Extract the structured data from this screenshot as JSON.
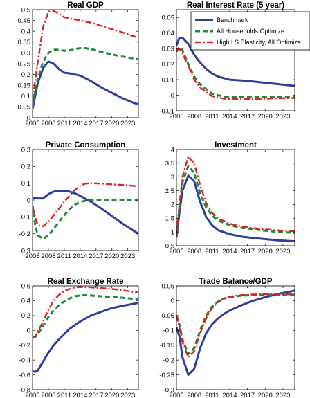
{
  "chart_data": [
    {
      "type": "line",
      "title": "Real GDP",
      "xlim": [
        2005,
        2025
      ],
      "ylim": [
        0,
        0.5
      ],
      "xticks": [
        "2005",
        "2008",
        "2011",
        "2014",
        "2017",
        "2020",
        "2023"
      ],
      "yticks": [
        "0",
        "0.05",
        "0.1",
        "0.15",
        "0.2",
        "0.25",
        "0.3",
        "0.35",
        "0.4",
        "0.45",
        "0.5"
      ],
      "series": [
        {
          "key": "benchmark",
          "x": [
            2005,
            2006,
            2007,
            2008,
            2009,
            2010,
            2011,
            2012,
            2014,
            2016,
            2018,
            2020,
            2022,
            2024,
            2025
          ],
          "y": [
            0.04,
            0.16,
            0.23,
            0.26,
            0.25,
            0.225,
            0.208,
            0.205,
            0.195,
            0.17,
            0.14,
            0.115,
            0.09,
            0.07,
            0.062
          ]
        },
        {
          "key": "all_optimize",
          "x": [
            2005,
            2006,
            2007,
            2008,
            2009,
            2010,
            2011,
            2012,
            2013,
            2014,
            2015,
            2016,
            2018,
            2020,
            2022,
            2025
          ],
          "y": [
            0.06,
            0.18,
            0.26,
            0.3,
            0.315,
            0.315,
            0.31,
            0.312,
            0.318,
            0.322,
            0.322,
            0.318,
            0.305,
            0.293,
            0.283,
            0.27
          ]
        },
        {
          "key": "high_ls",
          "x": [
            2005,
            2006,
            2007,
            2008,
            2009,
            2010,
            2011,
            2012,
            2014,
            2016,
            2018,
            2020,
            2022,
            2025
          ],
          "y": [
            0.08,
            0.26,
            0.42,
            0.49,
            0.495,
            0.48,
            0.465,
            0.46,
            0.45,
            0.44,
            0.425,
            0.41,
            0.395,
            0.37
          ]
        }
      ]
    },
    {
      "type": "line",
      "title": "Real Interest Rate (5 year)",
      "xlim": [
        2005,
        2025
      ],
      "ylim": [
        -0.01,
        0.055
      ],
      "xticks": [
        "2005",
        "2008",
        "2011",
        "2014",
        "2017",
        "2020",
        "2023"
      ],
      "yticks": [
        "-0.01",
        "0",
        "0.01",
        "0.02",
        "0.03",
        "0.04",
        "0.05"
      ],
      "legend": [
        "Benchmark",
        "All Households Optimize",
        "High LS Elasticity, All Optimize"
      ],
      "series": [
        {
          "key": "benchmark",
          "x": [
            2005,
            2005.5,
            2006,
            2007,
            2008,
            2009,
            2010,
            2011,
            2012,
            2014,
            2016,
            2018,
            2020,
            2022,
            2025
          ],
          "y": [
            0.032,
            0.037,
            0.037,
            0.033,
            0.026,
            0.021,
            0.017,
            0.014,
            0.012,
            0.01,
            0.0095,
            0.0088,
            0.008,
            0.0072,
            0.006
          ]
        },
        {
          "key": "all_optimize",
          "x": [
            2005,
            2005.5,
            2006,
            2007,
            2008,
            2009,
            2010,
            2011,
            2012,
            2013,
            2014,
            2016,
            2018,
            2020,
            2022,
            2025
          ],
          "y": [
            0.028,
            0.031,
            0.029,
            0.02,
            0.012,
            0.007,
            0.004,
            0.001,
            0,
            -0.0008,
            -0.001,
            -0.0012,
            -0.0012,
            -0.0012,
            -0.0012,
            -0.0012
          ]
        },
        {
          "key": "high_ls",
          "x": [
            2005,
            2005.5,
            2006,
            2007,
            2008,
            2009,
            2010,
            2011,
            2012,
            2013,
            2014,
            2016,
            2018,
            2020,
            2022,
            2025
          ],
          "y": [
            0.029,
            0.03,
            0.027,
            0.019,
            0.01,
            0.005,
            0.002,
            -0.0005,
            -0.0015,
            -0.0022,
            -0.0024,
            -0.0025,
            -0.0024,
            -0.0022,
            -0.002,
            -0.0018
          ]
        }
      ]
    },
    {
      "type": "line",
      "title": "Private Consumption",
      "xlim": [
        2005,
        2025
      ],
      "ylim": [
        -0.3,
        0.3
      ],
      "xticks": [
        "2005",
        "2008",
        "2011",
        "2014",
        "2017",
        "2020",
        "2023"
      ],
      "yticks": [
        "-0.3",
        "-0.2",
        "-0.1",
        "0",
        "0.1",
        "0.2",
        "0.3"
      ],
      "series": [
        {
          "key": "benchmark",
          "x": [
            2005,
            2005.5,
            2006,
            2007,
            2008,
            2009,
            2010,
            2011,
            2012,
            2013,
            2014,
            2016,
            2018,
            2020,
            2022,
            2025
          ],
          "y": [
            0.01,
            0.015,
            0.01,
            0.01,
            0.035,
            0.05,
            0.055,
            0.055,
            0.05,
            0.04,
            0.025,
            -0.01,
            -0.05,
            -0.095,
            -0.14,
            -0.2
          ]
        },
        {
          "key": "all_optimize",
          "x": [
            2005,
            2005.5,
            2006,
            2007,
            2008,
            2009,
            2010,
            2011,
            2012,
            2013,
            2014,
            2015,
            2016,
            2018,
            2020,
            2022,
            2025
          ],
          "y": [
            -0.03,
            -0.15,
            -0.21,
            -0.23,
            -0.21,
            -0.17,
            -0.13,
            -0.09,
            -0.055,
            -0.028,
            -0.012,
            -0.004,
            0.0,
            0.002,
            0.001,
            0.0,
            -0.003
          ]
        },
        {
          "key": "high_ls",
          "x": [
            2005,
            2005.5,
            2006,
            2007,
            2008,
            2009,
            2010,
            2011,
            2012,
            2013,
            2014,
            2015,
            2016,
            2018,
            2020,
            2022,
            2025
          ],
          "y": [
            -0.04,
            -0.1,
            -0.15,
            -0.155,
            -0.13,
            -0.09,
            -0.05,
            -0.01,
            0.025,
            0.06,
            0.085,
            0.098,
            0.1,
            0.098,
            0.093,
            0.09,
            0.082
          ]
        }
      ]
    },
    {
      "type": "line",
      "title": "Investment",
      "xlim": [
        2005,
        2025
      ],
      "ylim": [
        0.5,
        4
      ],
      "xticks": [
        "2005",
        "2008",
        "2011",
        "2014",
        "2017",
        "2020",
        "2023"
      ],
      "yticks": [
        "0.5",
        "1",
        "1.5",
        "2",
        "2.5",
        "3",
        "3.5",
        "4"
      ],
      "series": [
        {
          "key": "benchmark",
          "x": [
            2005,
            2005.5,
            2006,
            2007,
            2008,
            2009,
            2010,
            2011,
            2012,
            2014,
            2016,
            2018,
            2020,
            2022,
            2025
          ],
          "y": [
            0.8,
            1.7,
            2.5,
            3.05,
            2.85,
            2.1,
            1.55,
            1.25,
            1.07,
            0.92,
            0.83,
            0.78,
            0.74,
            0.7,
            0.66
          ]
        },
        {
          "key": "all_optimize",
          "x": [
            2005,
            2005.5,
            2006,
            2007,
            2008,
            2009,
            2010,
            2011,
            2012,
            2014,
            2016,
            2018,
            2020,
            2022,
            2025
          ],
          "y": [
            0.8,
            1.9,
            2.8,
            3.4,
            3.15,
            2.4,
            1.9,
            1.6,
            1.42,
            1.25,
            1.15,
            1.1,
            1.05,
            1.0,
            0.97
          ]
        },
        {
          "key": "high_ls",
          "x": [
            2005,
            2005.5,
            2006,
            2007,
            2008,
            2009,
            2010,
            2011,
            2012,
            2014,
            2016,
            2018,
            2020,
            2022,
            2025
          ],
          "y": [
            0.85,
            2.0,
            3.0,
            3.75,
            3.5,
            2.7,
            2.05,
            1.7,
            1.5,
            1.3,
            1.2,
            1.14,
            1.1,
            1.06,
            1.03
          ]
        }
      ]
    },
    {
      "type": "line",
      "title": "Real Exchange Rate",
      "xlim": [
        2005,
        2025
      ],
      "ylim": [
        -0.8,
        0.6
      ],
      "xticks": [
        "2005",
        "2008",
        "2011",
        "2014",
        "2017",
        "2020",
        "2023"
      ],
      "yticks": [
        "-0.8",
        "-0.6",
        "-0.4",
        "-0.2",
        "0",
        "0.2",
        "0.4",
        "0.6"
      ],
      "series": [
        {
          "key": "benchmark",
          "x": [
            2005,
            2005.5,
            2006,
            2007,
            2008,
            2009,
            2010,
            2011,
            2012,
            2014,
            2016,
            2018,
            2020,
            2022,
            2025
          ],
          "y": [
            -0.55,
            -0.56,
            -0.54,
            -0.42,
            -0.3,
            -0.2,
            -0.12,
            -0.05,
            0.02,
            0.12,
            0.2,
            0.25,
            0.3,
            0.33,
            0.37
          ]
        },
        {
          "key": "all_optimize",
          "x": [
            2005,
            2005.5,
            2006,
            2007,
            2008,
            2009,
            2010,
            2011,
            2012,
            2013,
            2014,
            2015,
            2016,
            2018,
            2020,
            2022,
            2025
          ],
          "y": [
            -0.1,
            -0.09,
            -0.05,
            0.06,
            0.18,
            0.27,
            0.34,
            0.39,
            0.43,
            0.46,
            0.47,
            0.475,
            0.47,
            0.46,
            0.45,
            0.44,
            0.42
          ]
        },
        {
          "key": "high_ls",
          "x": [
            2005,
            2005.5,
            2006,
            2007,
            2008,
            2009,
            2010,
            2011,
            2012,
            2013,
            2014,
            2016,
            2018,
            2020,
            2022,
            2025
          ],
          "y": [
            -0.1,
            -0.08,
            -0.02,
            0.12,
            0.28,
            0.4,
            0.48,
            0.53,
            0.56,
            0.58,
            0.585,
            0.58,
            0.57,
            0.56,
            0.54,
            0.51
          ]
        }
      ]
    },
    {
      "type": "line",
      "title": "Trade Balance/GDP",
      "xlim": [
        2005,
        2025
      ],
      "ylim": [
        -0.3,
        0.05
      ],
      "xticks": [
        "2005",
        "2008",
        "2011",
        "2014",
        "2017",
        "2020",
        "2023"
      ],
      "yticks": [
        "-0.3",
        "-0.25",
        "-0.2",
        "-0.15",
        "-0.1",
        "-0.05",
        "0",
        "0.05"
      ],
      "series": [
        {
          "key": "benchmark",
          "x": [
            2005,
            2005.5,
            2006,
            2007,
            2008,
            2009,
            2010,
            2011,
            2012,
            2013,
            2014,
            2016,
            2018,
            2020,
            2022,
            2025
          ],
          "y": [
            -0.09,
            -0.12,
            -0.19,
            -0.25,
            -0.23,
            -0.16,
            -0.11,
            -0.08,
            -0.06,
            -0.045,
            -0.033,
            -0.015,
            0.0,
            0.012,
            0.022,
            0.034
          ]
        },
        {
          "key": "all_optimize",
          "x": [
            2005,
            2005.5,
            2006,
            2007,
            2008,
            2009,
            2010,
            2011,
            2012,
            2013,
            2014,
            2016,
            2018,
            2020,
            2022,
            2025
          ],
          "y": [
            -0.05,
            -0.08,
            -0.13,
            -0.18,
            -0.16,
            -0.1,
            -0.05,
            -0.02,
            -0.003,
            0.007,
            0.012,
            0.017,
            0.019,
            0.02,
            0.02,
            0.02
          ]
        },
        {
          "key": "high_ls",
          "x": [
            2005,
            2005.5,
            2006,
            2007,
            2008,
            2009,
            2010,
            2011,
            2012,
            2013,
            2014,
            2016,
            2018,
            2020,
            2022,
            2025
          ],
          "y": [
            -0.05,
            -0.09,
            -0.14,
            -0.19,
            -0.17,
            -0.11,
            -0.06,
            -0.025,
            -0.005,
            0.008,
            0.014,
            0.019,
            0.021,
            0.022,
            0.022,
            0.021
          ]
        }
      ]
    }
  ],
  "styles": {
    "benchmark": {
      "color": "#2e3e9e",
      "dash": "",
      "width": 3
    },
    "all_optimize": {
      "color": "#1f8a3a",
      "dash": "7,4",
      "width": 3
    },
    "high_ls": {
      "color": "#e02020",
      "dash": "9,3,2,3",
      "width": 2.4
    }
  }
}
